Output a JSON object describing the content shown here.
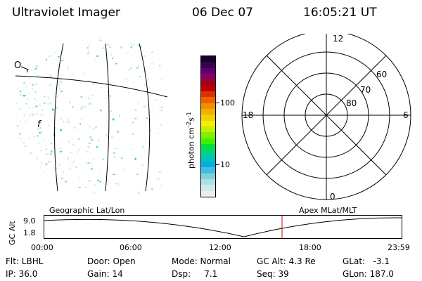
{
  "header": {
    "instrument": "Ultraviolet Imager",
    "date": "06 Dec 07",
    "time": "16:05:21 UT"
  },
  "colorbar": {
    "label_unit": "photon cm",
    "label_exp1": "-2",
    "label_s": "s",
    "label_exp2": "-1",
    "ticks": [
      "100",
      "10"
    ],
    "colors": [
      "#1a0030",
      "#3a0050",
      "#600070",
      "#8a0060",
      "#a00020",
      "#c00000",
      "#e03000",
      "#f06000",
      "#f09000",
      "#f0b000",
      "#f0d000",
      "#f0f000",
      "#c0f000",
      "#80f000",
      "#40f000",
      "#00e040",
      "#00d080",
      "#00c0c0",
      "#00b0e0",
      "#40c0e0",
      "#80d0e0",
      "#b0e0e0",
      "#d0eaea",
      "#e8f0f0"
    ]
  },
  "geo_panel": {
    "marks": [
      "O",
      "f"
    ]
  },
  "polar_plot": {
    "mlt_labels": {
      "top": "12",
      "bottom": "0",
      "left": "18",
      "right": "6"
    },
    "lat_labels": [
      "60",
      "70",
      "80"
    ]
  },
  "timeline": {
    "left_label": "Geographic Lat/Lon",
    "right_label": "Apex MLat/MLT",
    "y_axis_label": "GC Alt",
    "y_ticks": [
      "9.0",
      "1.8"
    ],
    "x_ticks": [
      "00:00",
      "06:00",
      "12:00",
      "18:00",
      "23:59"
    ],
    "marker_color": "#cc0000"
  },
  "status": {
    "row1": {
      "flt": "Flt: LBHL",
      "door": "Door: Open",
      "mode": "Mode: Normal",
      "gcalt": "GC Alt: 4.3 Re",
      "glat": "GLat:   -3.1"
    },
    "row2": {
      "ip": "IP: 36.0",
      "gain": "Gain: 14",
      "dsp": "Dsp:     7.1",
      "seq": "Seq: 39",
      "glon": "GLon: 187.0"
    }
  }
}
